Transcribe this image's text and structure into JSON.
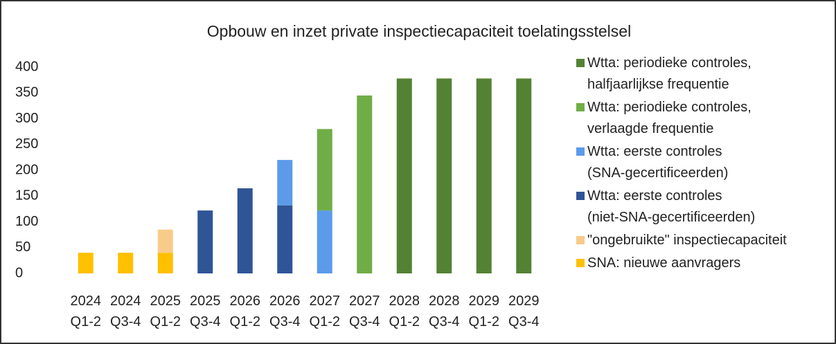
{
  "chart_data": {
    "type": "stacked_bar",
    "title": "Opbouw en inzet private inspectiecapaciteit toelatingsstelsel",
    "categories": [
      "2024 Q1-2",
      "2024 Q3-4",
      "2025 Q1-2",
      "2025 Q3-4",
      "2026 Q1-2",
      "2026 Q3-4",
      "2027 Q1-2",
      "2027 Q3-4",
      "2028 Q1-2",
      "2028 Q3-4",
      "2029 Q1-2",
      "2029 Q3-4"
    ],
    "series": [
      {
        "name": "Wtta: periodieke controles, halfjaarlijkse frequentie",
        "color": "#548235",
        "values": [
          0,
          0,
          0,
          0,
          0,
          0,
          0,
          0,
          378,
          378,
          378,
          378
        ]
      },
      {
        "name": "Wtta: periodieke controles, verlaagde frequentie",
        "color": "#70ad47",
        "values": [
          0,
          0,
          0,
          0,
          0,
          0,
          158,
          345,
          0,
          0,
          0,
          0
        ]
      },
      {
        "name": "Wtta: eerste controles (SNA-gecertificeerden)",
        "color": "#5b9bea",
        "values": [
          0,
          0,
          0,
          0,
          0,
          88,
          122,
          0,
          0,
          0,
          0,
          0
        ]
      },
      {
        "name": "Wtta: eerste controles (niet-SNA-gecertificeerden)",
        "color": "#2f5597",
        "values": [
          0,
          0,
          0,
          122,
          165,
          132,
          0,
          0,
          0,
          0,
          0,
          0
        ]
      },
      {
        "name": "\"ongebruikte\" inspectiecapaciteit",
        "color": "#f8cb8a",
        "values": [
          0,
          0,
          45,
          0,
          0,
          0,
          0,
          0,
          0,
          0,
          0,
          0
        ]
      },
      {
        "name": "SNA: nieuwe aanvragers",
        "color": "#ffc000",
        "values": [
          40,
          40,
          40,
          0,
          0,
          0,
          0,
          0,
          0,
          0,
          0,
          0
        ]
      }
    ],
    "ylim": [
      0,
      400
    ],
    "yticks": [
      0,
      50,
      100,
      150,
      200,
      250,
      300,
      350,
      400
    ],
    "legend": "right"
  }
}
